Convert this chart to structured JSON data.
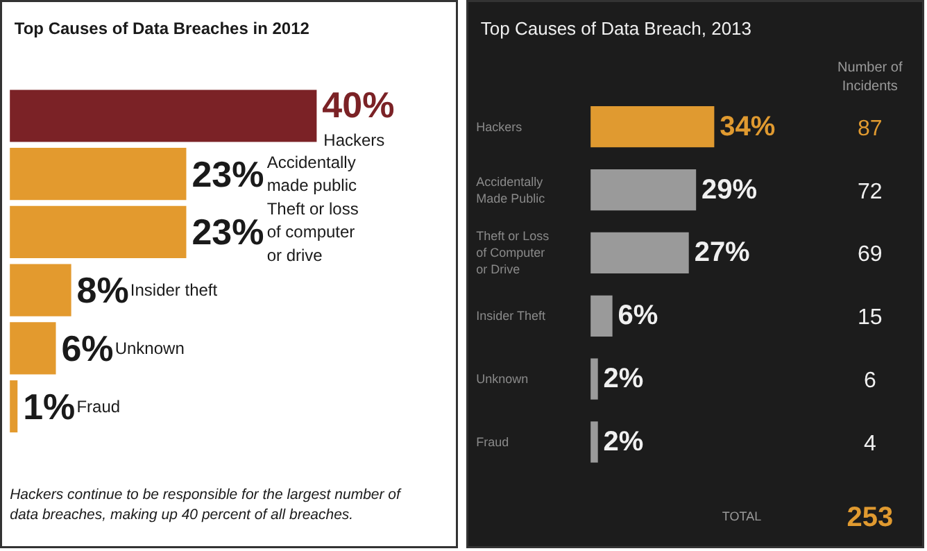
{
  "chart_data": [
    {
      "type": "bar",
      "orientation": "horizontal",
      "title": "Top Causes of Data Breaches in 2012",
      "categories": [
        "Hackers",
        "Accidentally made public",
        "Theft or loss of computer or drive",
        "Insider theft",
        "Unknown",
        "Fraud"
      ],
      "values": [
        40,
        23,
        23,
        8,
        6,
        1
      ],
      "value_labels": [
        "40%",
        "23%",
        "23%",
        "8%",
        "6%",
        "1%"
      ],
      "colors": [
        "#7b2226",
        "#e39a2e",
        "#e39a2e",
        "#e39a2e",
        "#e39a2e",
        "#e39a2e"
      ],
      "annotations": [
        "Hackers continue to be responsible for the largest number of data breaches, making up 40 percent of all breaches."
      ]
    },
    {
      "type": "bar",
      "orientation": "horizontal",
      "title": "Top Causes of Data Breach, 2013",
      "categories": [
        "Hackers",
        "Accidentally Made Public",
        "Theft or Loss of Computer or Drive",
        "Insider Theft",
        "Unknown",
        "Fraud"
      ],
      "values": [
        34,
        29,
        27,
        6,
        2,
        2
      ],
      "value_labels": [
        "34%",
        "29%",
        "27%",
        "6%",
        "2%",
        "2%"
      ],
      "colors": [
        "#e09a30",
        "#9a9a9a",
        "#9a9a9a",
        "#9a9a9a",
        "#9a9a9a",
        "#9a9a9a"
      ],
      "annotations": [
        "Number of Incidents",
        "87",
        "72",
        "69",
        "15",
        "6",
        "4",
        "TOTAL",
        "253"
      ]
    }
  ]
}
